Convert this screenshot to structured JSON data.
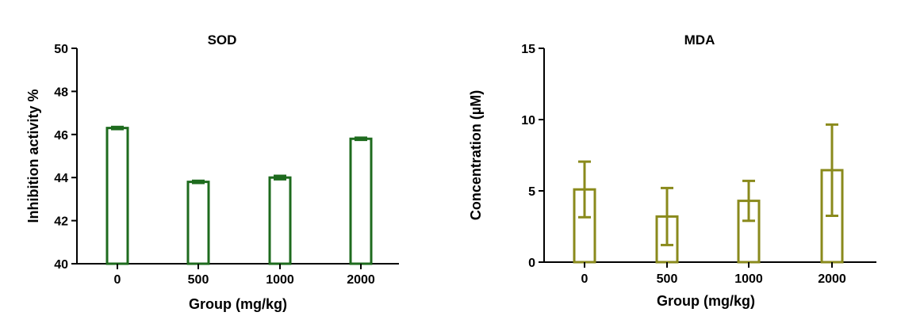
{
  "chart_data": [
    {
      "type": "bar",
      "title": "SOD",
      "xlabel": "Group (mg/kg)",
      "ylabel": "Inhibition activity %",
      "categories": [
        "0",
        "500",
        "1000",
        "2000"
      ],
      "values": [
        46.3,
        43.8,
        44.0,
        45.8
      ],
      "errors": [
        0.05,
        0.05,
        0.08,
        0.05
      ],
      "ylim": [
        40,
        50
      ],
      "yticks": [
        "40",
        "42",
        "44",
        "46",
        "48",
        "50"
      ],
      "color": "#1e6b1e",
      "grid": false
    },
    {
      "type": "bar",
      "title": "MDA",
      "xlabel": "Group (mg/kg)",
      "ylabel": "Concentration (µM)",
      "categories": [
        "0",
        "500",
        "1000",
        "2000"
      ],
      "values": [
        5.1,
        3.2,
        4.3,
        6.45
      ],
      "errors": [
        1.95,
        2.0,
        1.4,
        3.2
      ],
      "ylim": [
        0,
        15
      ],
      "yticks": [
        "0",
        "5",
        "10",
        "15"
      ],
      "color": "#8a8a1c",
      "grid": false
    }
  ]
}
